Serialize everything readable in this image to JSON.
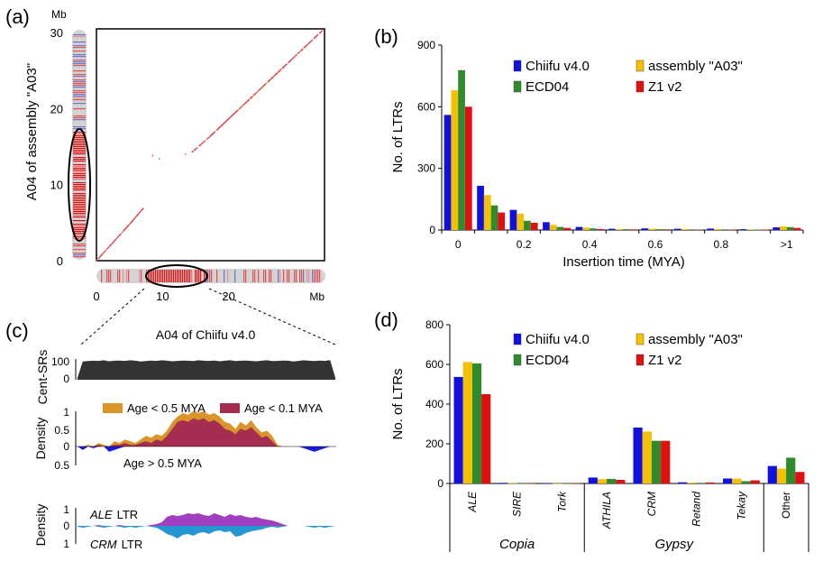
{
  "panels": {
    "a": "(a)",
    "b": "(b)",
    "c": "(c)",
    "d": "(d)"
  },
  "colors": {
    "chiifu": "#1010e0",
    "a03": "#f5c000",
    "ecd04": "#2e8b2e",
    "z1": "#e01010",
    "dot": "#e04040",
    "chrom_gray": "#d3d3d3",
    "age_old": "#d9952a",
    "age_young": "#a52d4f",
    "ale": "#a040c0",
    "crm": "#2596d0",
    "centsr": "#333333"
  },
  "panel_a": {
    "y_axis_label": "A04 of assembly \"A03\"",
    "y_unit": "Mb",
    "y_ticks": [
      "0",
      "10",
      "20",
      "30"
    ],
    "x_unit": "Mb",
    "x_ticks": [
      "0",
      "10",
      "20"
    ],
    "y_range_mb": [
      0,
      30.5
    ],
    "x_range_mb": [
      0,
      34.5
    ],
    "dot_segments": [
      {
        "x": [
          0,
          5
        ],
        "y": [
          0,
          4.8
        ]
      },
      {
        "x": [
          5,
          7.2
        ],
        "y": [
          4.8,
          7.0
        ]
      },
      {
        "x": [
          14.5,
          17
        ],
        "y": [
          14.3,
          16.2
        ]
      },
      {
        "x": [
          17,
          34.2
        ],
        "y": [
          16.2,
          30.3
        ]
      }
    ],
    "stray_dots": [
      {
        "x": 8.5,
        "y": 13.8
      },
      {
        "x": 9.5,
        "y": 13.4
      },
      {
        "x": 13.5,
        "y": 14.0
      }
    ]
  },
  "panel_c": {
    "title": "A04 of Chiifu v4.0",
    "centsr_label": "Cent-SRs",
    "centsr_ticks": [
      "100",
      "0"
    ],
    "density_label": "Density",
    "age_ticks": [
      "1",
      "0.5",
      "0",
      "0.5"
    ],
    "legend_old": "Age < 0.5 MYA",
    "legend_young": "Age < 0.1 MYA",
    "below_label": "Age > 0.5 MYA",
    "ltr_ticks": [
      "1",
      "0",
      "1"
    ],
    "ale_label": "ALE",
    "crm_label": "CRM",
    "ltr_suffix": "LTR",
    "centsr_values": [
      10,
      92,
      94,
      96,
      95,
      98,
      93,
      96,
      97,
      95,
      98,
      96,
      92,
      94,
      97,
      95,
      98,
      96,
      93,
      95,
      97,
      96,
      94,
      98,
      96,
      95,
      97,
      93,
      96,
      98,
      94,
      96,
      97,
      95,
      93,
      96,
      98,
      94,
      95,
      97,
      96,
      92,
      95,
      98,
      96,
      94,
      97,
      95,
      99,
      10
    ],
    "age_old_values": [
      0,
      0,
      0.05,
      0,
      0.1,
      0.05,
      0,
      0.15,
      0.1,
      0.2,
      0.15,
      0.1,
      0.2,
      0.3,
      0.25,
      0.35,
      0.3,
      0.45,
      0.7,
      0.85,
      0.95,
      0.9,
      1.0,
      0.95,
      1.0,
      0.9,
      0.95,
      0.85,
      0.7,
      0.65,
      0.5,
      0.7,
      0.6,
      0.75,
      0.55,
      0.4,
      0.45,
      0.3,
      0.05,
      0,
      0,
      0,
      0,
      0,
      0,
      0,
      0,
      0,
      0,
      0
    ],
    "age_young_values": [
      0,
      0,
      0,
      0,
      0.05,
      0,
      0,
      0.05,
      0.05,
      0.1,
      0.05,
      0.05,
      0.1,
      0.15,
      0.1,
      0.2,
      0.15,
      0.3,
      0.5,
      0.7,
      0.75,
      0.7,
      0.8,
      0.75,
      0.8,
      0.7,
      0.75,
      0.65,
      0.5,
      0.45,
      0.35,
      0.5,
      0.45,
      0.55,
      0.4,
      0.25,
      0.3,
      0.15,
      0,
      0,
      0,
      0,
      0,
      0,
      0,
      0,
      0,
      0,
      0,
      0
    ],
    "age_below_values": [
      0,
      0.1,
      0,
      0.05,
      0,
      0,
      0.15,
      0.1,
      0.05,
      0,
      0,
      0,
      0,
      0,
      0,
      0,
      0,
      0,
      0,
      0,
      0,
      0,
      0,
      0,
      0,
      0,
      0,
      0,
      0,
      0,
      0,
      0,
      0,
      0,
      0,
      0,
      0,
      0,
      0,
      0,
      0,
      0,
      0,
      0.05,
      0.1,
      0.15,
      0.1,
      0.05,
      0,
      0
    ],
    "ale_values": [
      0,
      0,
      0,
      0,
      0.05,
      0,
      0,
      0,
      0.05,
      0,
      0,
      0,
      0,
      0,
      0.05,
      0.1,
      0.2,
      0.5,
      0.6,
      0.55,
      0.6,
      0.7,
      0.65,
      0.7,
      0.6,
      0.55,
      0.7,
      0.6,
      0.5,
      0.65,
      0.55,
      0.6,
      0.5,
      0.45,
      0.5,
      0.4,
      0.35,
      0.3,
      0.2,
      0.1,
      0,
      0,
      0,
      0,
      0,
      0,
      0,
      0,
      0,
      0
    ],
    "crm_values": [
      0.05,
      0.1,
      0.05,
      0,
      0.05,
      0.1,
      0.05,
      0,
      0.05,
      0.1,
      0.05,
      0.1,
      0.05,
      0,
      0.05,
      0.1,
      0.25,
      0.45,
      0.55,
      0.7,
      0.5,
      0.45,
      0.55,
      0.4,
      0.35,
      0.45,
      0.3,
      0.25,
      0.35,
      0.3,
      0.6,
      0.55,
      0.4,
      0.3,
      0.25,
      0.2,
      0.1,
      0.05,
      0.1,
      0.05,
      0,
      0,
      0,
      0,
      0.05,
      0.1,
      0.05,
      0.1,
      0.05,
      0
    ]
  },
  "chart_data": [
    {
      "panel": "b",
      "type": "bar",
      "xlabel": "Insertion time (MYA)",
      "ylabel": "No. of LTRs",
      "ylim": [
        0,
        900
      ],
      "yticks": [
        0,
        300,
        600,
        900
      ],
      "xtick_labels": [
        "0",
        "0.2",
        "0.4",
        "0.6",
        "0.8",
        ">1"
      ],
      "xtick_bins": [
        0,
        2,
        4,
        6,
        8,
        10
      ],
      "categories": [
        "0",
        "0.1",
        "0.2",
        "0.3",
        "0.4",
        "0.5",
        "0.6",
        "0.7",
        "0.8",
        "0.9",
        ">1"
      ],
      "legend_position": "top-right",
      "series": [
        {
          "name": "Chiifu v4.0",
          "color": "#1010e0",
          "values": [
            560,
            215,
            98,
            38,
            15,
            6,
            8,
            6,
            7,
            4,
            13
          ]
        },
        {
          "name": "assembly \"A03\"",
          "color": "#f5c000",
          "values": [
            680,
            170,
            80,
            25,
            12,
            5,
            6,
            5,
            5,
            3,
            18
          ]
        },
        {
          "name": "ECD04",
          "color": "#2e8b2e",
          "values": [
            778,
            120,
            45,
            15,
            8,
            4,
            4,
            3,
            3,
            2,
            14
          ]
        },
        {
          "name": "Z1 v2",
          "color": "#e01010",
          "values": [
            600,
            85,
            35,
            10,
            5,
            3,
            3,
            2,
            2,
            2,
            10
          ]
        }
      ]
    },
    {
      "panel": "d",
      "type": "bar",
      "ylabel": "No. of LTRs",
      "ylim": [
        0,
        800
      ],
      "yticks": [
        0,
        200,
        400,
        600,
        800
      ],
      "categories": [
        "ALE",
        "SIRE",
        "Tork",
        "ATHILA",
        "CRM",
        "Retand",
        "Tekay",
        "Other"
      ],
      "groups": [
        {
          "label": "Copia",
          "from": 0,
          "to": 2
        },
        {
          "label": "Gypsy",
          "from": 3,
          "to": 6
        }
      ],
      "legend_position": "top-right",
      "series": [
        {
          "name": "Chiifu v4.0",
          "color": "#1010e0",
          "values": [
            537,
            3,
            2,
            30,
            282,
            6,
            25,
            88
          ]
        },
        {
          "name": "assembly \"A03\"",
          "color": "#f5c000",
          "values": [
            612,
            2,
            1,
            22,
            262,
            4,
            24,
            75
          ]
        },
        {
          "name": "ECD04",
          "color": "#2e8b2e",
          "values": [
            605,
            1,
            1,
            23,
            215,
            3,
            12,
            130
          ]
        },
        {
          "name": "Z1 v2",
          "color": "#e01010",
          "values": [
            450,
            1,
            2,
            18,
            215,
            5,
            16,
            58
          ]
        }
      ]
    }
  ]
}
